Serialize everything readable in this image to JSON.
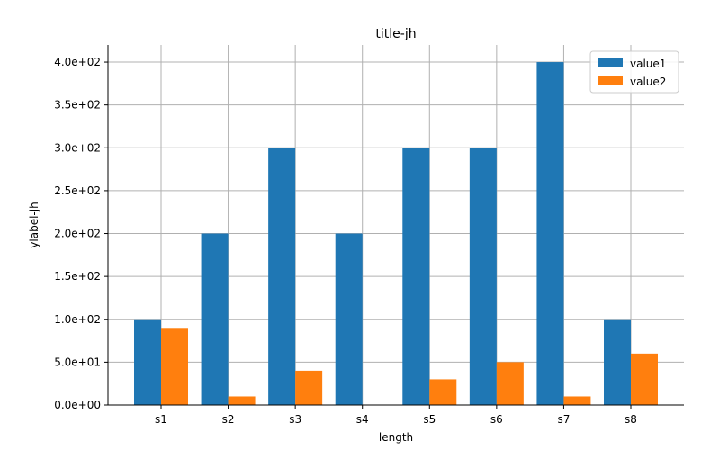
{
  "chart_data": {
    "type": "bar",
    "title": "title-jh",
    "xlabel": "length",
    "ylabel": "ylabel-jh",
    "categories": [
      "s1",
      "s2",
      "s3",
      "s4",
      "s5",
      "s6",
      "s7",
      "s8"
    ],
    "series": [
      {
        "name": "value1",
        "color": "#1f77b4",
        "values": [
          100,
          200,
          300,
          200,
          300,
          300,
          400,
          100
        ]
      },
      {
        "name": "value2",
        "color": "#ff7f0e",
        "values": [
          90,
          10,
          40,
          0,
          30,
          50,
          10,
          60
        ]
      }
    ],
    "ylim": [
      0,
      420
    ],
    "yticks": [
      0,
      50,
      100,
      150,
      200,
      250,
      300,
      350,
      400
    ],
    "ytick_labels": [
      "0.0e+00",
      "5.0e+01",
      "1.0e+02",
      "1.5e+02",
      "2.0e+02",
      "2.5e+02",
      "3.0e+02",
      "3.5e+02",
      "4.0e+02"
    ],
    "grid": true,
    "legend_position": "top-right"
  }
}
